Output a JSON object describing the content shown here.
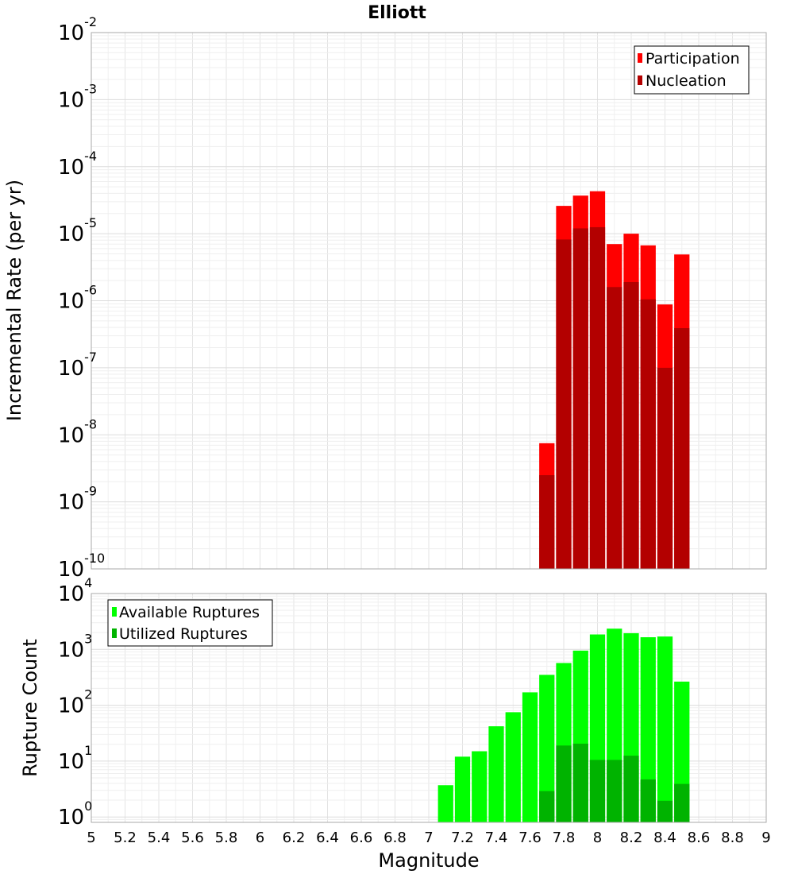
{
  "chart_data": [
    {
      "type": "bar",
      "title": "Elliott",
      "xlabel": "Magnitude",
      "ylabel": "Incremental Rate (per yr)",
      "yscale": "log",
      "ylim": [
        1e-10,
        0.01
      ],
      "xlim": [
        5,
        9
      ],
      "grid": true,
      "legend_position": "top-right",
      "x": [
        7.7,
        7.8,
        7.9,
        8.0,
        8.1,
        8.2,
        8.3,
        8.4,
        8.5
      ],
      "series": [
        {
          "name": "Participation",
          "color": "#ff0000",
          "values": [
            7.5e-09,
            2.6e-05,
            3.7e-05,
            4.3e-05,
            7e-06,
            1e-05,
            6.7e-06,
            8.8e-07,
            4.9e-06
          ]
        },
        {
          "name": "Nucleation",
          "color": "#b30000",
          "values": [
            2.5e-09,
            8.2e-06,
            1.2e-05,
            1.25e-05,
            1.6e-06,
            1.9e-06,
            1.05e-06,
            1e-07,
            3.9e-07
          ]
        }
      ]
    },
    {
      "type": "bar",
      "xlabel": "Magnitude",
      "ylabel": "Rupture Count",
      "yscale": "log",
      "ylim": [
        0.8,
        10000
      ],
      "xlim": [
        5,
        9
      ],
      "grid": true,
      "legend_position": "top-left",
      "x": [
        7.1,
        7.2,
        7.3,
        7.4,
        7.5,
        7.6,
        7.7,
        7.8,
        7.9,
        8.0,
        8.1,
        8.2,
        8.3,
        8.4,
        8.5
      ],
      "series": [
        {
          "name": "Available Ruptures",
          "color": "#00ff00",
          "values": [
            3.7,
            12,
            15,
            42,
            75,
            170,
            350,
            570,
            950,
            1850,
            2350,
            1950,
            1650,
            1700,
            265
          ]
        },
        {
          "name": "Utilized Ruptures",
          "color": "#00b300",
          "values": [
            0,
            0,
            0,
            0,
            0,
            0,
            2.9,
            19,
            20.5,
            10.5,
            10.5,
            12.5,
            4.7,
            1.95,
            3.9
          ]
        }
      ]
    }
  ],
  "x_ticks": [
    "5",
    "5.2",
    "5.4",
    "5.6",
    "5.8",
    "6",
    "6.2",
    "6.4",
    "6.6",
    "6.8",
    "7",
    "7.2",
    "7.4",
    "7.6",
    "7.8",
    "8",
    "8.2",
    "8.4",
    "8.6",
    "8.8",
    "9"
  ],
  "top_y_ticks": [
    {
      "base": "10",
      "exp": "-10"
    },
    {
      "base": "10",
      "exp": "-9"
    },
    {
      "base": "10",
      "exp": "-8"
    },
    {
      "base": "10",
      "exp": "-7"
    },
    {
      "base": "10",
      "exp": "-6"
    },
    {
      "base": "10",
      "exp": "-5"
    },
    {
      "base": "10",
      "exp": "-4"
    },
    {
      "base": "10",
      "exp": "-3"
    },
    {
      "base": "10",
      "exp": "-2"
    }
  ],
  "bottom_y_ticks": [
    {
      "base": "10",
      "exp": "0"
    },
    {
      "base": "10",
      "exp": "1"
    },
    {
      "base": "10",
      "exp": "2"
    },
    {
      "base": "10",
      "exp": "3"
    },
    {
      "base": "10",
      "exp": "4"
    }
  ]
}
